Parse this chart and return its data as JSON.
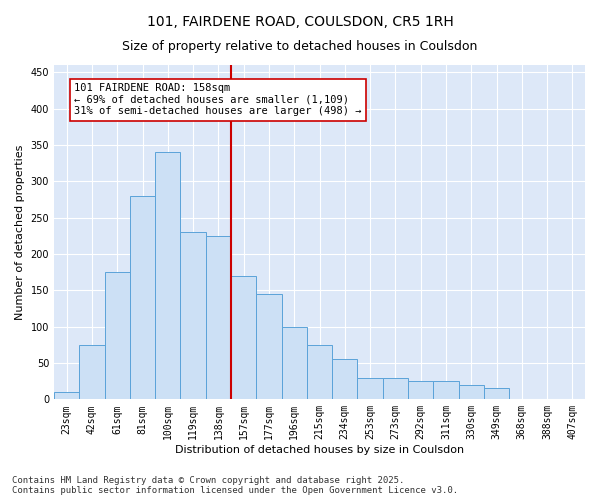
{
  "title": "101, FAIRDENE ROAD, COULSDON, CR5 1RH",
  "subtitle": "Size of property relative to detached houses in Coulsdon",
  "xlabel": "Distribution of detached houses by size in Coulsdon",
  "ylabel": "Number of detached properties",
  "bar_labels": [
    "23sqm",
    "42sqm",
    "61sqm",
    "81sqm",
    "100sqm",
    "119sqm",
    "138sqm",
    "157sqm",
    "177sqm",
    "196sqm",
    "215sqm",
    "234sqm",
    "253sqm",
    "273sqm",
    "292sqm",
    "311sqm",
    "330sqm",
    "349sqm",
    "368sqm",
    "388sqm",
    "407sqm"
  ],
  "bar_values": [
    10,
    75,
    175,
    280,
    340,
    230,
    225,
    170,
    145,
    100,
    75,
    55,
    30,
    30,
    25,
    25,
    20,
    15,
    0,
    0,
    0
  ],
  "bar_color": "#cce0f5",
  "bar_edge_color": "#5ba3d9",
  "vline_color": "#cc0000",
  "vline_x_index": 7,
  "annotation_text": "101 FAIRDENE ROAD: 158sqm\n← 69% of detached houses are smaller (1,109)\n31% of semi-detached houses are larger (498) →",
  "annotation_box_color": "#ffffff",
  "annotation_box_edge_color": "#cc0000",
  "ylim": [
    0,
    460
  ],
  "yticks": [
    0,
    50,
    100,
    150,
    200,
    250,
    300,
    350,
    400,
    450
  ],
  "bg_color": "#dde8f8",
  "footer_text": "Contains HM Land Registry data © Crown copyright and database right 2025.\nContains public sector information licensed under the Open Government Licence v3.0.",
  "title_fontsize": 10,
  "subtitle_fontsize": 9,
  "xlabel_fontsize": 8,
  "ylabel_fontsize": 8,
  "tick_fontsize": 7,
  "footer_fontsize": 6.5,
  "annotation_fontsize": 7.5
}
